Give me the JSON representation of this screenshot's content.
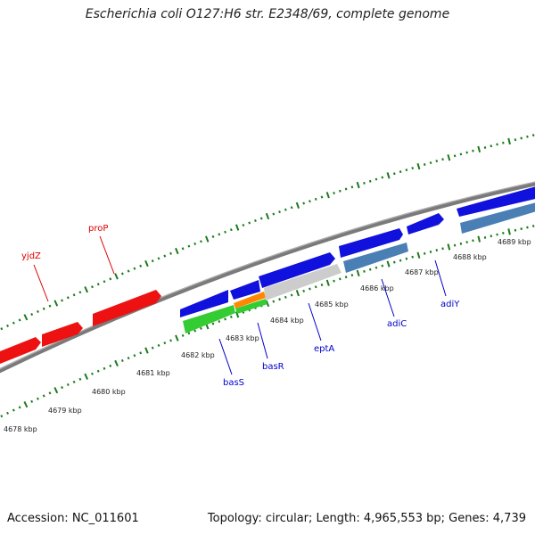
{
  "title": "Escherichia coli O127:H6 str. E2348/69, complete genome",
  "footer": {
    "accession": "Accession: NC_011601",
    "summary": "Topology: circular; Length: 4,965,553 bp; Genes: 4,739"
  },
  "colors": {
    "forward_gene": "#ee1111",
    "reverse_gene_blue": "#1111dd",
    "reverse_gene_steel": "#4a7fb5",
    "green_gene": "#33cc33",
    "orange_gene": "#ff8800",
    "gray_gene": "#cccccc",
    "backbone": "#888888",
    "tick": "#1a7a1a"
  },
  "ticks": {
    "unit": "kbp",
    "labels": [
      "4678 kbp",
      "4679 kbp",
      "4680 kbp",
      "4681 kbp",
      "4682 kbp",
      "4683 kbp",
      "4684 kbp",
      "4685 kbp",
      "4686 kbp",
      "4687 kbp",
      "4688 kbp",
      "4689 kbp"
    ]
  },
  "gene_labels": [
    {
      "name": "yjdZ",
      "strand": "forward"
    },
    {
      "name": "proP",
      "strand": "forward"
    },
    {
      "name": "basS",
      "strand": "reverse"
    },
    {
      "name": "basR",
      "strand": "reverse"
    },
    {
      "name": "eptA",
      "strand": "reverse"
    },
    {
      "name": "adiC",
      "strand": "reverse"
    },
    {
      "name": "adiY",
      "strand": "reverse"
    }
  ]
}
